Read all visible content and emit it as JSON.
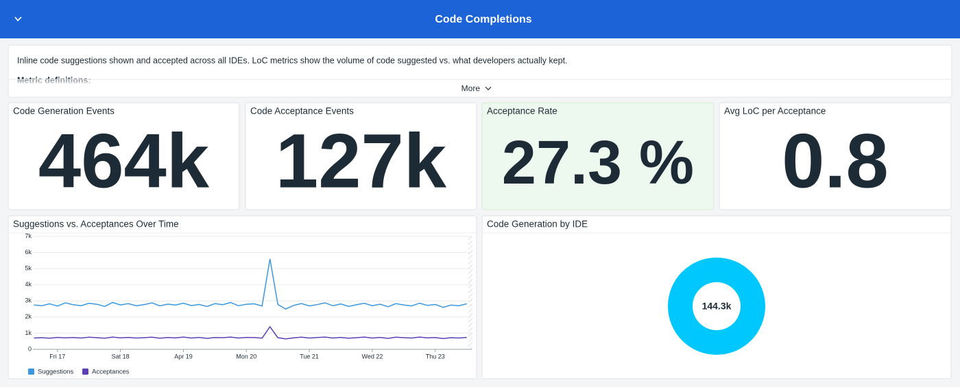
{
  "header": {
    "title": "Code Completions"
  },
  "description": {
    "text": "Inline code suggestions shown and accepted across all IDEs. LoC metrics show the volume of code suggested vs. what developers actually kept.",
    "subheading": "Metric definitions:",
    "more": "More"
  },
  "kpis": [
    {
      "title": "Code Generation Events",
      "value": "464k"
    },
    {
      "title": "Code Acceptance Events",
      "value": "127k"
    },
    {
      "title": "Acceptance Rate",
      "value": "27.3 %"
    },
    {
      "title": "Avg LoC per Acceptance",
      "value": "0.8"
    }
  ],
  "chart_data": [
    {
      "type": "line",
      "title": "Suggestions vs. Acceptances Over Time",
      "x": [
        -0.375,
        -0.25,
        -0.125,
        0,
        0.125,
        0.25,
        0.375,
        0.5,
        0.625,
        0.75,
        0.875,
        1,
        1.125,
        1.25,
        1.375,
        1.5,
        1.625,
        1.75,
        1.875,
        2,
        2.125,
        2.25,
        2.375,
        2.5,
        2.625,
        2.75,
        2.875,
        3,
        3.125,
        3.25,
        3.375,
        3.5,
        3.625,
        3.75,
        3.875,
        4,
        4.125,
        4.25,
        4.375,
        4.5,
        4.625,
        4.75,
        4.875,
        5,
        5.125,
        5.25,
        5.375,
        5.5,
        5.625,
        5.75,
        5.875,
        6,
        6.125,
        6.25,
        6.375,
        6.5
      ],
      "series": [
        {
          "name": "Suggestions",
          "color": "#3b97e0",
          "values": [
            2750,
            2700,
            2820,
            2680,
            2880,
            2760,
            2700,
            2850,
            2790,
            2660,
            2900,
            2750,
            2830,
            2700,
            2770,
            2880,
            2690,
            2800,
            2740,
            2860,
            2710,
            2780,
            2650,
            2830,
            2760,
            2900,
            2700,
            2790,
            2820,
            2680,
            5600,
            2780,
            2500,
            2720,
            2840,
            2690,
            2770,
            2880,
            2700,
            2810,
            2660,
            2760,
            2850,
            2700,
            2790,
            2640,
            2830,
            2750,
            2690,
            2860,
            2720,
            2780,
            2600,
            2740,
            2700,
            2820
          ]
        },
        {
          "name": "Acceptances",
          "color": "#5b3fb8",
          "values": [
            700,
            720,
            690,
            740,
            710,
            730,
            700,
            750,
            720,
            690,
            760,
            710,
            740,
            700,
            720,
            750,
            690,
            730,
            710,
            760,
            700,
            740,
            680,
            730,
            720,
            760,
            700,
            740,
            730,
            690,
            1400,
            720,
            650,
            710,
            750,
            700,
            730,
            760,
            700,
            740,
            690,
            720,
            760,
            700,
            740,
            680,
            750,
            720,
            700,
            760,
            710,
            730,
            670,
            720,
            700,
            740
          ]
        }
      ],
      "xlim": [
        -0.39,
        6.58
      ],
      "xticks": [
        {
          "value": 0,
          "label": "Fri 17"
        },
        {
          "value": 1,
          "label": "Sat 18"
        },
        {
          "value": 2,
          "label": "Apr 19"
        },
        {
          "value": 3,
          "label": "Mon 20"
        },
        {
          "value": 4,
          "label": "Tue 21"
        },
        {
          "value": 5,
          "label": "Wed 22"
        },
        {
          "value": 6,
          "label": "Thu 23"
        }
      ],
      "ylim": [
        0,
        7000
      ],
      "yticks": [
        0,
        {
          "value": 1000,
          "label": "1k"
        },
        {
          "value": 2000,
          "label": "2k"
        },
        {
          "value": 3000,
          "label": "3k"
        },
        {
          "value": 4000,
          "label": "4k"
        },
        {
          "value": 5000,
          "label": "5k"
        },
        {
          "value": 6000,
          "label": "6k"
        },
        {
          "value": 7000,
          "label": "7k"
        }
      ],
      "grid": true
    },
    {
      "type": "pie",
      "title": "Code Generation by IDE",
      "donut": true,
      "values": [
        144300
      ],
      "value_labels": [
        "144.3k"
      ],
      "colors": [
        "#00c8ff"
      ]
    }
  ]
}
